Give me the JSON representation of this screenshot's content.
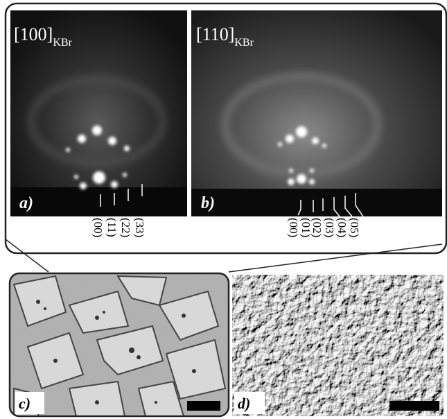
{
  "panels": [
    {
      "label": "a)",
      "zone": "[100]",
      "zone_subscript": "KBr",
      "spot_labels": [
        "(00)",
        "(11)",
        "(22)",
        "(33)"
      ]
    },
    {
      "label": "b)",
      "zone": "[110]",
      "zone_subscript": "KBr",
      "spot_labels": [
        "(00)",
        "(01)",
        "(02)",
        "(03)",
        "(04)",
        "(05)"
      ]
    },
    {
      "label": "c)"
    },
    {
      "label": "d)"
    }
  ]
}
